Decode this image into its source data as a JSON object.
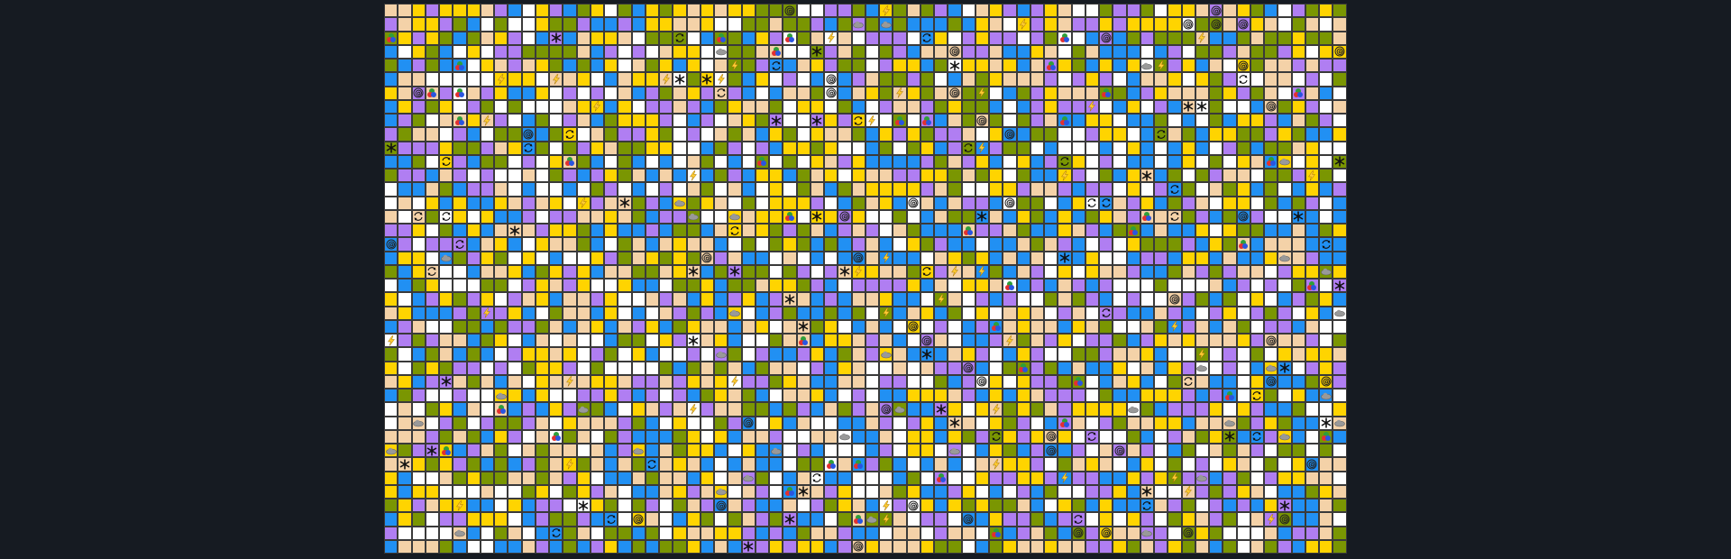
{
  "board": {
    "rows": 40,
    "cols": 70,
    "palette": {
      "white": "#ffffff",
      "purple": "#b07ef2",
      "olive": "#7a9602",
      "peach": "#f4d2a8",
      "yellow": "#ffd400",
      "blue": "#2190f3"
    },
    "grid_line_color": "#3a3a3a",
    "background": "#161b22",
    "piece_types": [
      "snowflake-icon",
      "spiral-icon",
      "cloud-icon",
      "lightning-icon",
      "cycle-icon",
      "tricolor-blob-icon"
    ]
  }
}
